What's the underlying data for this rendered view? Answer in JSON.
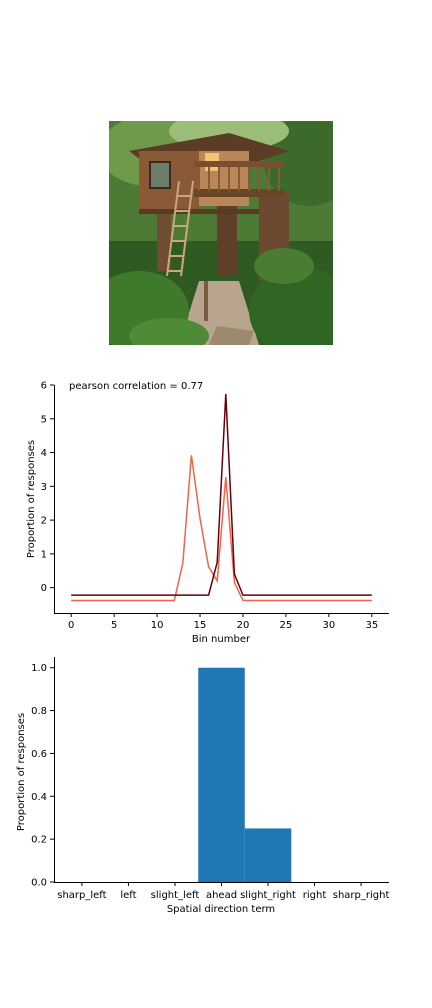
{
  "image": {
    "subject": "treehouse in forest",
    "colors": {
      "sky": "#dfe9d6",
      "foliage": "#3f6b2a",
      "foliage_dark": "#24441a",
      "wood": "#8a5a36",
      "wood_light": "#b88657",
      "trunk": "#6b4a30",
      "path": "#b9a58e",
      "window_glow": "#f2c66d"
    }
  },
  "chart_data": [
    {
      "type": "line",
      "annotation": "pearson correlation = 0.77",
      "xlabel": "Bin number",
      "ylabel": "Proportion of responses",
      "xlim": [
        -2,
        37
      ],
      "ylim": [
        -0.75,
        6.0
      ],
      "xticks": [
        0,
        5,
        10,
        15,
        20,
        25,
        30,
        35
      ],
      "yticks": [
        0,
        1,
        2,
        3,
        4,
        5,
        6
      ],
      "x": [
        0,
        1,
        2,
        3,
        4,
        5,
        6,
        7,
        8,
        9,
        10,
        11,
        12,
        13,
        14,
        15,
        16,
        17,
        18,
        19,
        20,
        21,
        22,
        23,
        24,
        25,
        26,
        27,
        28,
        29,
        30,
        31,
        32,
        33,
        34,
        35
      ],
      "series": [
        {
          "color": "#ef6548",
          "values": [
            -0.38,
            -0.38,
            -0.38,
            -0.38,
            -0.38,
            -0.38,
            -0.38,
            -0.38,
            -0.38,
            -0.38,
            -0.38,
            -0.38,
            -0.38,
            0.72,
            3.92,
            2.05,
            0.62,
            0.2,
            3.27,
            0.15,
            -0.38,
            -0.38,
            -0.38,
            -0.38,
            -0.38,
            -0.38,
            -0.38,
            -0.38,
            -0.38,
            -0.38,
            -0.38,
            -0.38,
            -0.38,
            -0.38,
            -0.38,
            -0.38
          ]
        },
        {
          "color": "#67000d",
          "values": [
            -0.22,
            -0.22,
            -0.22,
            -0.22,
            -0.22,
            -0.22,
            -0.22,
            -0.22,
            -0.22,
            -0.22,
            -0.22,
            -0.22,
            -0.22,
            -0.22,
            -0.22,
            -0.22,
            -0.22,
            0.75,
            5.73,
            0.4,
            -0.22,
            -0.22,
            -0.22,
            -0.22,
            -0.22,
            -0.22,
            -0.22,
            -0.22,
            -0.22,
            -0.22,
            -0.22,
            -0.22,
            -0.22,
            -0.22,
            -0.22,
            -0.22
          ]
        }
      ],
      "grid": false
    },
    {
      "type": "bar",
      "xlabel": "Spatial direction term",
      "ylabel": "Proportion of responses",
      "categories": [
        "sharp_left",
        "left",
        "slight_left",
        "ahead",
        "slight_right",
        "right",
        "sharp_right"
      ],
      "values": [
        0,
        0,
        0,
        1.0,
        0.25,
        0,
        0
      ],
      "ylim": [
        0,
        1.05
      ],
      "yticks": [
        "0.0",
        "0.2",
        "0.4",
        "0.6",
        "0.8",
        "1.0"
      ],
      "bar_color": "#1f77b4",
      "grid": false
    }
  ]
}
